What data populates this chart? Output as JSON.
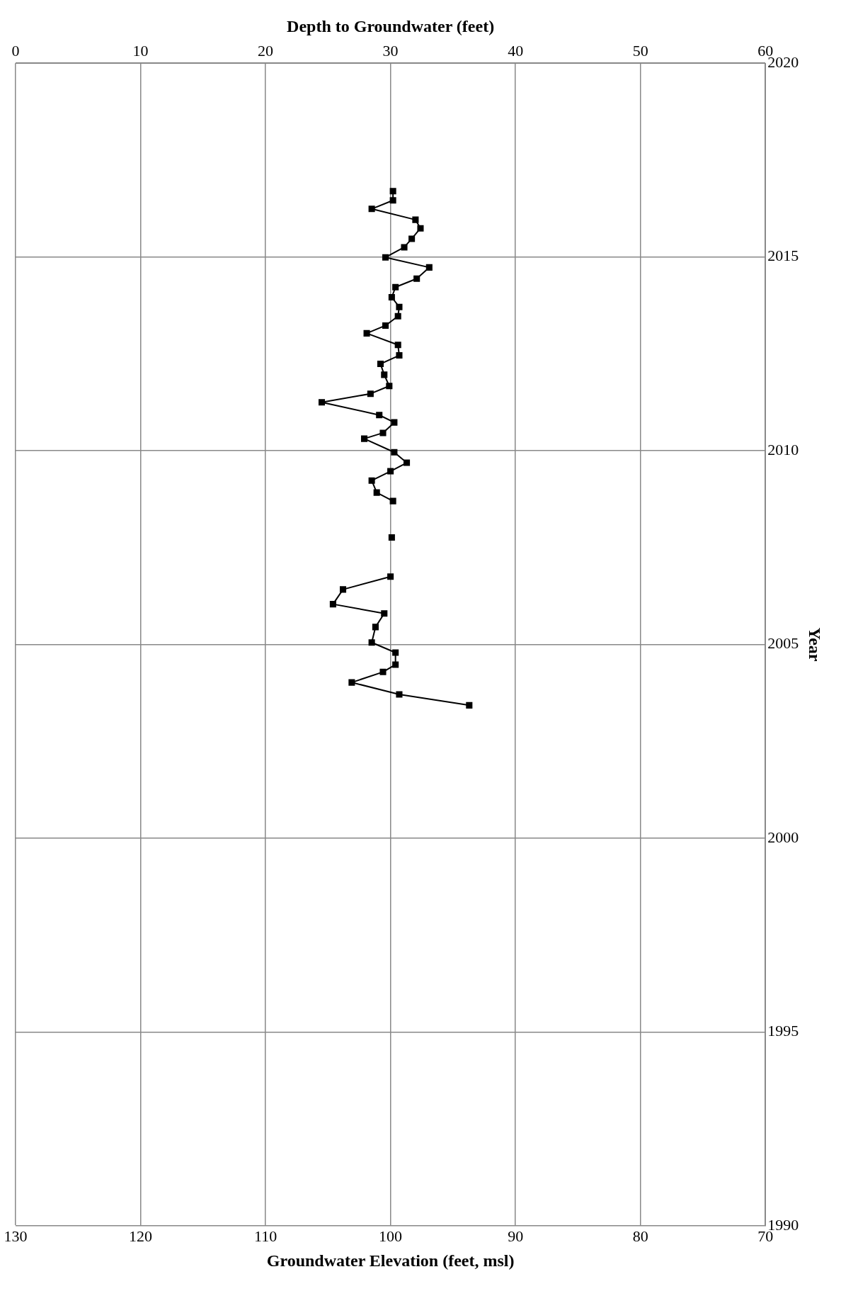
{
  "chart_data": {
    "type": "line",
    "xlabel": "Groundwater Elevation (feet, msl)",
    "x2label": "Depth to Groundwater (feet)",
    "ylabel": "Year",
    "xlim": [
      130,
      70
    ],
    "xticks": [
      130,
      120,
      110,
      100,
      90,
      80,
      70
    ],
    "x2lim": [
      0,
      60
    ],
    "x2ticks": [
      0,
      10,
      20,
      30,
      40,
      50,
      60
    ],
    "ylim": [
      1990,
      2020
    ],
    "yticks": [
      1990,
      1995,
      2000,
      2005,
      2010,
      2015,
      2020
    ],
    "grid": true,
    "marker": "square",
    "line_style": "solid",
    "series": [
      {
        "color": "#000000",
        "x": [
          93.7,
          99.3,
          103.1,
          100.6,
          99.6,
          99.6,
          101.5,
          101.2,
          100.5,
          104.6,
          103.8,
          100.0
        ],
        "values": [
          2003.43,
          2003.71,
          2004.02,
          2004.29,
          2004.48,
          2004.79,
          2005.05,
          2005.45,
          2005.8,
          2006.04,
          2006.42,
          2006.75
        ]
      },
      {
        "color": "#000000",
        "x": [
          99.9
        ],
        "values": [
          2007.76
        ]
      },
      {
        "color": "#000000",
        "x": [
          99.8,
          101.1,
          101.5,
          100.0,
          98.7,
          99.7,
          102.1,
          100.6,
          99.7,
          100.9,
          105.5,
          101.6,
          100.1,
          100.5,
          100.8,
          99.3,
          99.4,
          101.9,
          100.4,
          99.4,
          99.3,
          99.9,
          99.6,
          97.9,
          96.9,
          100.4,
          98.9,
          98.3,
          97.6,
          98.0,
          101.5,
          99.8,
          99.8
        ],
        "values": [
          2008.7,
          2008.92,
          2009.23,
          2009.47,
          2009.69,
          2009.96,
          2010.31,
          2010.46,
          2010.73,
          2010.92,
          2011.25,
          2011.47,
          2011.67,
          2011.96,
          2012.24,
          2012.46,
          2012.73,
          2013.03,
          2013.23,
          2013.47,
          2013.71,
          2013.96,
          2014.22,
          2014.44,
          2014.73,
          2014.99,
          2015.25,
          2015.47,
          2015.74,
          2015.96,
          2016.24,
          2016.46,
          2016.7
        ]
      }
    ]
  }
}
